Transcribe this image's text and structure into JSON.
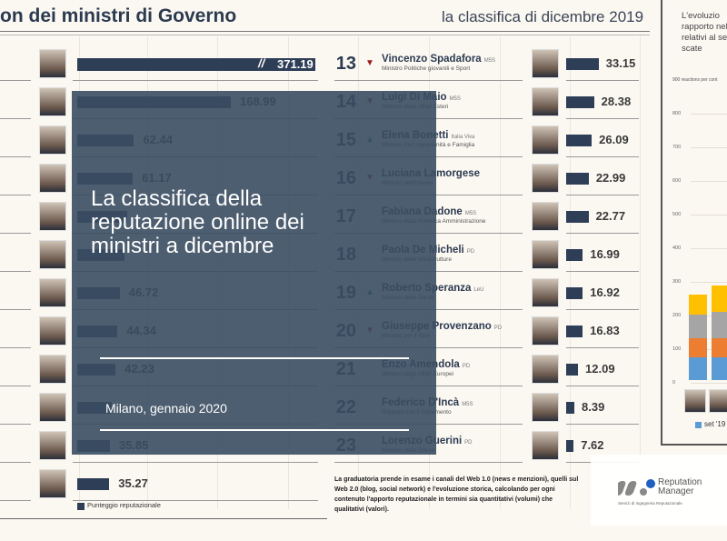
{
  "header": {
    "title": "on dei ministri di Governo",
    "subtitle": "la classifica di dicembre 2019"
  },
  "left_rows": [
    {
      "value": "371.19",
      "score": 371.19
    },
    {
      "value": "168.99",
      "score": 168.99
    },
    {
      "value": "62.44",
      "score": 62.44
    },
    {
      "value": "61.17",
      "score": 61.17
    },
    {
      "value": "",
      "score": 55
    },
    {
      "value": "",
      "score": 52
    },
    {
      "value": "46.72",
      "score": 46.72
    },
    {
      "value": "44.34",
      "score": 44.34
    },
    {
      "value": "42.23",
      "score": 42.23
    },
    {
      "value": "",
      "score": 38
    },
    {
      "value": "35.85",
      "score": 35.85
    },
    {
      "value": "35.27",
      "score": 35.27
    }
  ],
  "right_rows": [
    {
      "rank": "13",
      "trend": "down",
      "name": "Vincenzo Spadafora",
      "party": "M5S",
      "role": "Ministro Politiche giovanili e Sport",
      "value": "33.15",
      "score": 33.15
    },
    {
      "rank": "14",
      "trend": "down",
      "name": "Luigi Di Maio",
      "party": "M5S",
      "role": "Ministro degli Affari Esteri",
      "value": "28.38",
      "score": 28.38
    },
    {
      "rank": "15",
      "trend": "up",
      "name": "Elena Bonetti",
      "party": "Italia Viva",
      "role": "Ministro Pari opportunità e Famiglia",
      "value": "26.09",
      "score": 26.09
    },
    {
      "rank": "16",
      "trend": "down",
      "name": "Luciana Lamorgese",
      "party": "",
      "role": "Ministro dell'Interno",
      "value": "22.99",
      "score": 22.99
    },
    {
      "rank": "17",
      "trend": "",
      "name": "Fabiana Dadone",
      "party": "M5S",
      "role": "Ministro della Pubblica Amministrazione",
      "value": "22.77",
      "score": 22.77
    },
    {
      "rank": "18",
      "trend": "",
      "name": "Paola De Micheli",
      "party": "PD",
      "role": "Ministro delle Infrastrutture",
      "value": "16.99",
      "score": 16.99
    },
    {
      "rank": "19",
      "trend": "up",
      "name": "Roberto Speranza",
      "party": "LeU",
      "role": "Ministro della Salute",
      "value": "16.92",
      "score": 16.92
    },
    {
      "rank": "20",
      "trend": "down",
      "name": "Giuseppe Provenzano",
      "party": "PD",
      "role": "Ministro per il Sud",
      "value": "16.83",
      "score": 16.83
    },
    {
      "rank": "21",
      "trend": "",
      "name": "Enzo Amendola",
      "party": "PD",
      "role": "Ministro degli Affari Europei",
      "value": "12.09",
      "score": 12.09
    },
    {
      "rank": "22",
      "trend": "",
      "name": "Federico D'Incà",
      "party": "M5S",
      "role": "Rapporti con il Parlamento",
      "value": "8.39",
      "score": 8.39
    },
    {
      "rank": "23",
      "trend": "",
      "name": "Lorenzo Guerini",
      "party": "PD",
      "role": "Ministro della Difesa",
      "value": "7.62",
      "score": 7.62
    }
  ],
  "legend": {
    "label": "Punteggio reputazionale"
  },
  "footer": {
    "text": "La graduatoria prende in esame i canali del Web 1.0 (news e menzioni), quelli sul Web 2.0 (blog, social network) e l'evoluzione storica, calcolando per ogni contenuto l'apporto reputazionale in termini sia quantitativi (volumi) che qualitativi (valori)."
  },
  "overlay": {
    "title": "La classifica della reputazione online dei ministri a dicembre",
    "date": "Milano, gennaio 2020"
  },
  "side_chart": {
    "intro": [
      "L'evoluzio",
      "rapporto nel",
      "relativi al se",
      "scate"
    ],
    "ylabel": "900 reactions per cont",
    "ticks": [
      "800",
      "700",
      "600",
      "500",
      "400",
      "300",
      "200",
      "100",
      "0"
    ],
    "legend": "set '19",
    "colors": [
      "#5b9bd5",
      "#ed7d31",
      "#a5a5a5",
      "#ffc000"
    ]
  },
  "logo": {
    "name": "Reputation",
    "name2": "Manager",
    "tagline": "Servizi di Ingegneria Reputazionale"
  },
  "colors": {
    "bar": "#2e3e57",
    "up": "#2e8b57",
    "down": "#9b1b1b"
  }
}
